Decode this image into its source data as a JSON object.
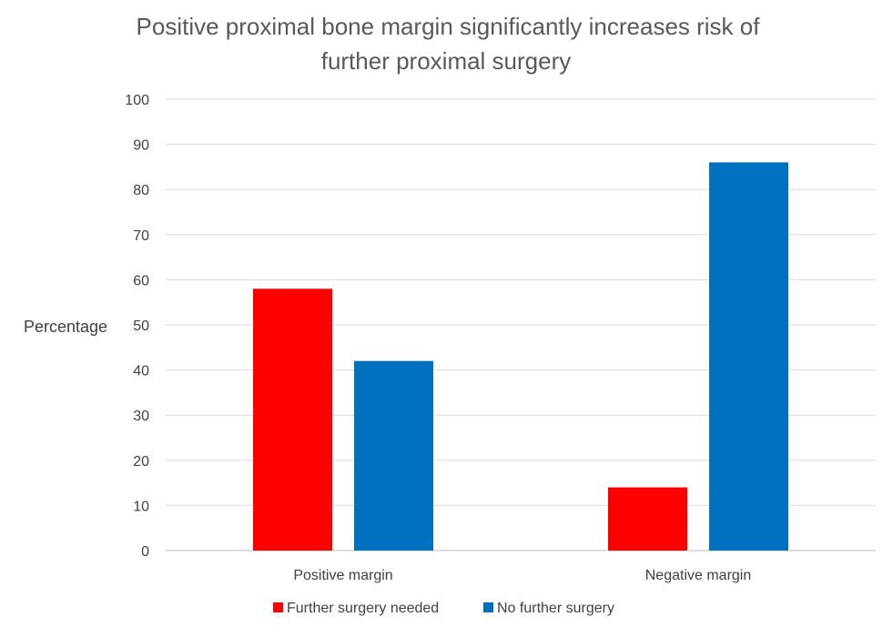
{
  "chart_data": {
    "type": "bar",
    "title_lines": [
      "Positive proximal bone margin significantly increases risk of",
      "further proximal surgery"
    ],
    "xlabel": "",
    "ylabel": "Percentage",
    "categories": [
      "Positive margin",
      "Negative margin"
    ],
    "series": [
      {
        "name": "Further surgery needed",
        "values": [
          58,
          14
        ],
        "color": "#ff0000"
      },
      {
        "name": "No further surgery",
        "values": [
          42,
          86
        ],
        "color": "#0070c0"
      }
    ],
    "ylim": [
      0,
      100
    ],
    "yticks": [
      0,
      10,
      20,
      30,
      40,
      50,
      60,
      70,
      80,
      90,
      100
    ],
    "grid": true,
    "legend_position": "bottom"
  }
}
